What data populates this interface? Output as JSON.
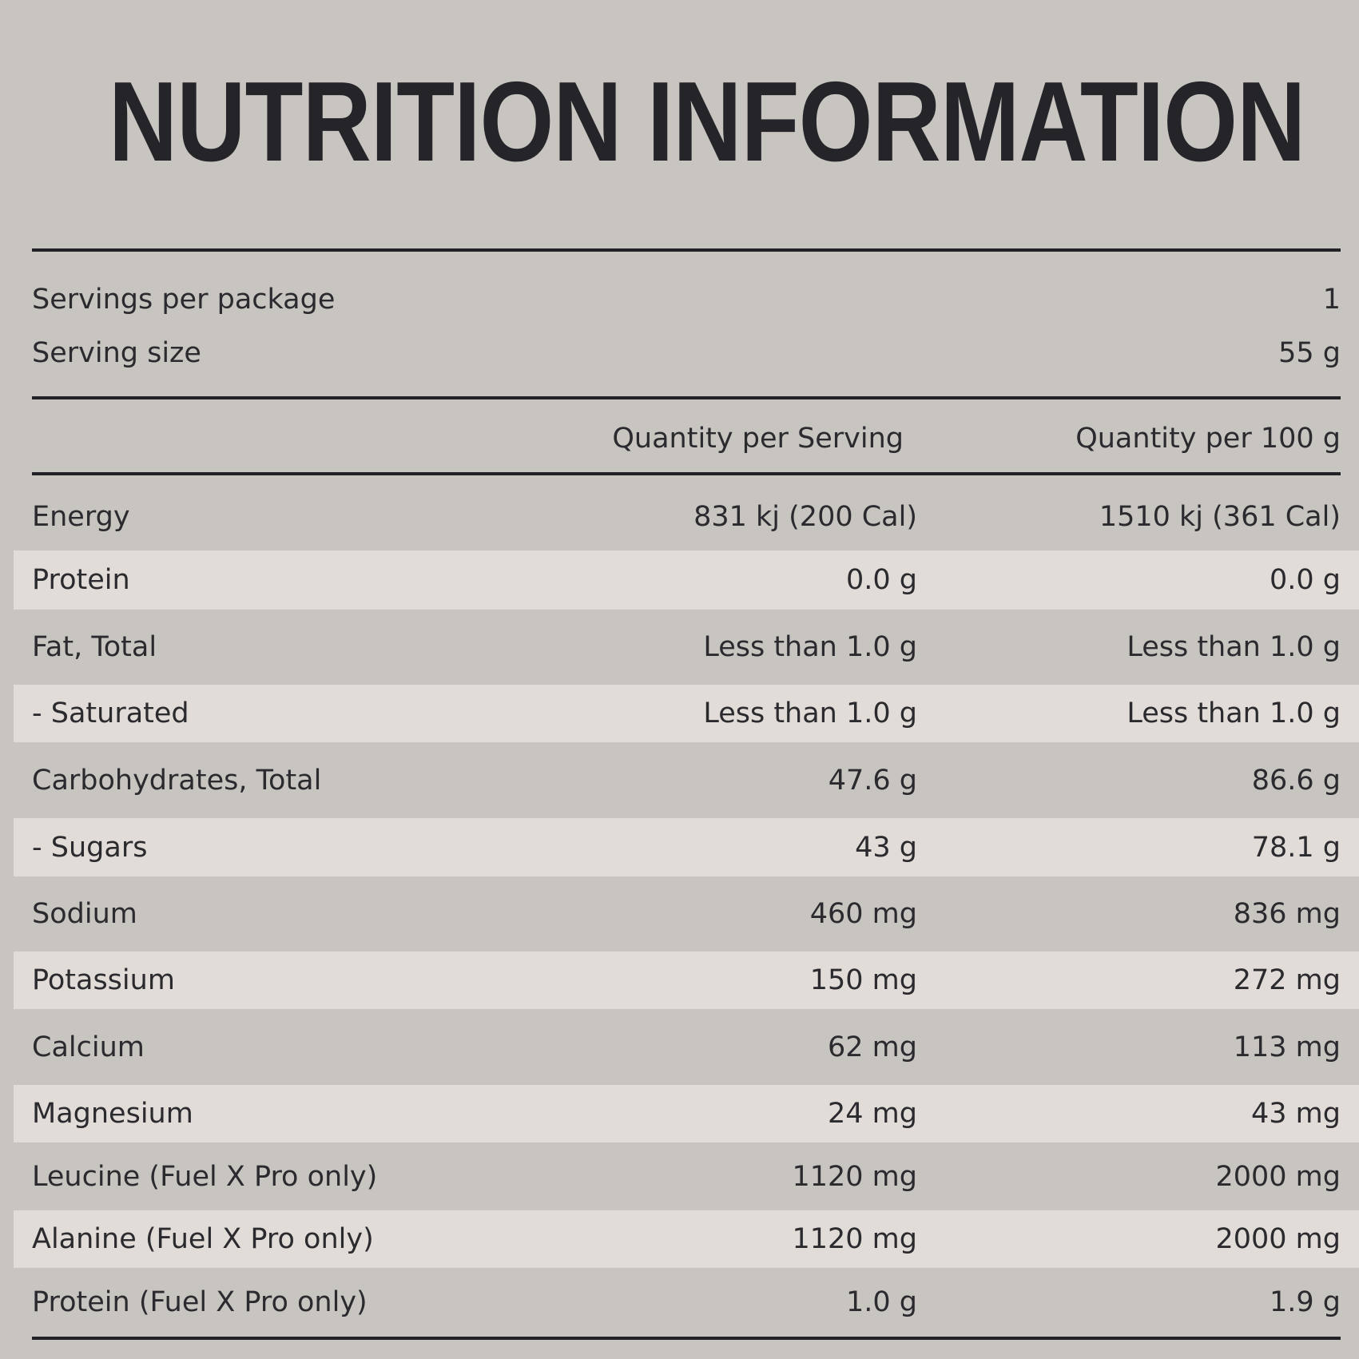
{
  "title": "NUTRITION INFORMATION",
  "servings_per_package": {
    "label": "Servings per package",
    "value": "1"
  },
  "serving_size": {
    "label": "Serving size",
    "value": "55 g"
  },
  "columns": {
    "per_serving": "Quantity per Serving",
    "per_100g": "Quantity per 100 g"
  },
  "rows": [
    {
      "label": "Energy",
      "per_serving": "831 kj (200 Cal)",
      "per_100g": "1510 kj (361 Cal)"
    },
    {
      "label": "Protein",
      "per_serving": "0.0 g",
      "per_100g": "0.0 g"
    },
    {
      "label": "Fat, Total",
      "per_serving": "Less than 1.0 g",
      "per_100g": "Less than 1.0 g"
    },
    {
      "label": "- Saturated",
      "per_serving": "Less than 1.0 g",
      "per_100g": "Less than 1.0 g"
    },
    {
      "label": "Carbohydrates, Total",
      "per_serving": "47.6 g",
      "per_100g": "86.6 g"
    },
    {
      "label": "- Sugars",
      "per_serving": "43 g",
      "per_100g": "78.1 g"
    },
    {
      "label": "Sodium",
      "per_serving": "460 mg",
      "per_100g": "836 mg"
    },
    {
      "label": "Potassium",
      "per_serving": "150 mg",
      "per_100g": "272 mg"
    },
    {
      "label": "Calcium",
      "per_serving": "62 mg",
      "per_100g": "113 mg"
    },
    {
      "label": "Magnesium",
      "per_serving": "24 mg",
      "per_100g": "43 mg"
    },
    {
      "label": "Leucine (Fuel X Pro only)",
      "per_serving": "1120 mg",
      "per_100g": "2000 mg"
    },
    {
      "label": "Alanine (Fuel X Pro only)",
      "per_serving": "1120 mg",
      "per_100g": "2000 mg"
    },
    {
      "label": "Protein (Fuel X Pro only)",
      "per_serving": "1.0 g",
      "per_100g": "1.9 g"
    }
  ]
}
